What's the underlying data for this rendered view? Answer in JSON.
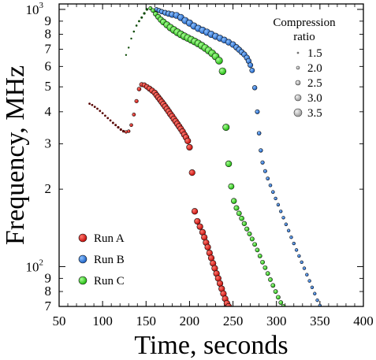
{
  "chart_data": {
    "type": "scatter",
    "xlabel": "Time, seconds",
    "ylabel": "Frequency, MHz",
    "x_scale": "linear",
    "y_scale": "log",
    "xlim": [
      50,
      400
    ],
    "ylim": [
      70,
      1050
    ],
    "x_ticks": [
      50,
      100,
      150,
      200,
      250,
      300,
      350,
      400
    ],
    "y_major_ticks": [
      {
        "value": 100,
        "base": "10",
        "exp": "2"
      },
      {
        "value": 1000,
        "base": "10",
        "exp": "3"
      }
    ],
    "y_minor_labels": [
      {
        "value": 70,
        "label": "7"
      },
      {
        "value": 80,
        "label": "8"
      },
      {
        "value": 90,
        "label": "9"
      },
      {
        "value": 200,
        "label": "2"
      },
      {
        "value": 300,
        "label": "3"
      },
      {
        "value": 400,
        "label": "4"
      },
      {
        "value": 500,
        "label": "5"
      },
      {
        "value": 600,
        "label": "6"
      },
      {
        "value": 700,
        "label": "7"
      },
      {
        "value": 800,
        "label": "8"
      },
      {
        "value": 900,
        "label": "9"
      }
    ],
    "size_legend": {
      "title_lines": [
        "Compression",
        "ratio"
      ],
      "entries": [
        {
          "label": "1.5",
          "ratio": 1.5
        },
        {
          "label": "2.0",
          "ratio": 2.0
        },
        {
          "label": "2.5",
          "ratio": 2.5
        },
        {
          "label": "3.0",
          "ratio": 3.0
        },
        {
          "label": "3.5",
          "ratio": 3.5
        }
      ],
      "placement": "top-right"
    },
    "color_legend_placement": "bottom-left",
    "series": [
      {
        "name": "Run A",
        "color": "#e8130f",
        "points": [
          {
            "x": 85,
            "y": 430,
            "r": 1.4
          },
          {
            "x": 88,
            "y": 425,
            "r": 1.4
          },
          {
            "x": 91,
            "y": 418,
            "r": 1.4
          },
          {
            "x": 94,
            "y": 411,
            "r": 1.4
          },
          {
            "x": 97,
            "y": 403,
            "r": 1.4
          },
          {
            "x": 100,
            "y": 395,
            "r": 1.4
          },
          {
            "x": 103,
            "y": 386,
            "r": 1.4
          },
          {
            "x": 106,
            "y": 378,
            "r": 1.4
          },
          {
            "x": 109,
            "y": 370,
            "r": 1.4
          },
          {
            "x": 112,
            "y": 362,
            "r": 1.5
          },
          {
            "x": 115,
            "y": 355,
            "r": 1.5
          },
          {
            "x": 118,
            "y": 348,
            "r": 1.6
          },
          {
            "x": 121,
            "y": 341,
            "r": 1.6
          },
          {
            "x": 124,
            "y": 336,
            "r": 1.7
          },
          {
            "x": 127,
            "y": 334,
            "r": 1.8
          },
          {
            "x": 130,
            "y": 336,
            "r": 1.9
          },
          {
            "x": 133,
            "y": 355,
            "r": 2.0
          },
          {
            "x": 136,
            "y": 390,
            "r": 2.1
          },
          {
            "x": 139,
            "y": 440,
            "r": 2.3
          },
          {
            "x": 142,
            "y": 490,
            "r": 2.5
          },
          {
            "x": 145,
            "y": 510,
            "r": 2.8
          },
          {
            "x": 148,
            "y": 508,
            "r": 3.0
          },
          {
            "x": 151,
            "y": 500,
            "r": 3.2
          },
          {
            "x": 154,
            "y": 492,
            "r": 3.4
          },
          {
            "x": 157,
            "y": 483,
            "r": 3.5
          },
          {
            "x": 160,
            "y": 474,
            "r": 3.6
          },
          {
            "x": 162,
            "y": 464,
            "r": 3.6
          },
          {
            "x": 164,
            "y": 455,
            "r": 3.7
          },
          {
            "x": 166,
            "y": 446,
            "r": 3.7
          },
          {
            "x": 168,
            "y": 437,
            "r": 3.7
          },
          {
            "x": 170,
            "y": 428,
            "r": 3.8
          },
          {
            "x": 172,
            "y": 419,
            "r": 3.8
          },
          {
            "x": 174,
            "y": 410,
            "r": 3.8
          },
          {
            "x": 176,
            "y": 401,
            "r": 3.8
          },
          {
            "x": 178,
            "y": 392,
            "r": 3.8
          },
          {
            "x": 180,
            "y": 384,
            "r": 3.8
          },
          {
            "x": 182,
            "y": 375,
            "r": 3.8
          },
          {
            "x": 184,
            "y": 367,
            "r": 3.8
          },
          {
            "x": 186,
            "y": 359,
            "r": 3.8
          },
          {
            "x": 188,
            "y": 351,
            "r": 3.8
          },
          {
            "x": 190,
            "y": 343,
            "r": 3.8
          },
          {
            "x": 192,
            "y": 335,
            "r": 3.8
          },
          {
            "x": 194,
            "y": 326,
            "r": 3.8
          },
          {
            "x": 196,
            "y": 318,
            "r": 3.8
          },
          {
            "x": 198,
            "y": 308,
            "r": 3.8
          },
          {
            "x": 200,
            "y": 291,
            "r": 3.8
          },
          {
            "x": 203,
            "y": 232,
            "r": 3.8
          },
          {
            "x": 206,
            "y": 164,
            "r": 3.8
          },
          {
            "x": 209,
            "y": 150,
            "r": 3.8
          },
          {
            "x": 212,
            "y": 143,
            "r": 3.8
          },
          {
            "x": 215,
            "y": 136,
            "r": 3.8
          },
          {
            "x": 217,
            "y": 130,
            "r": 3.8
          },
          {
            "x": 219,
            "y": 124,
            "r": 3.8
          },
          {
            "x": 221,
            "y": 119,
            "r": 3.8
          },
          {
            "x": 223,
            "y": 113,
            "r": 3.8
          },
          {
            "x": 225,
            "y": 108,
            "r": 3.8
          },
          {
            "x": 227,
            "y": 103,
            "r": 3.8
          },
          {
            "x": 229,
            "y": 98.5,
            "r": 3.8
          },
          {
            "x": 231,
            "y": 94,
            "r": 3.8
          },
          {
            "x": 233,
            "y": 90,
            "r": 3.8
          },
          {
            "x": 235,
            "y": 86,
            "r": 3.8
          },
          {
            "x": 237,
            "y": 82,
            "r": 3.8
          },
          {
            "x": 239,
            "y": 78.5,
            "r": 3.8
          },
          {
            "x": 241,
            "y": 75,
            "r": 3.8
          },
          {
            "x": 243,
            "y": 72,
            "r": 3.8
          },
          {
            "x": 245,
            "y": 70,
            "r": 3.8
          }
        ]
      },
      {
        "name": "Run B",
        "color": "#2a7fe8",
        "points": [
          {
            "x": 162,
            "y": 1000,
            "r": 2.6
          },
          {
            "x": 165,
            "y": 990,
            "r": 2.8
          },
          {
            "x": 168,
            "y": 980,
            "r": 3.0
          },
          {
            "x": 172,
            "y": 970,
            "r": 3.3
          },
          {
            "x": 176,
            "y": 962,
            "r": 3.6
          },
          {
            "x": 180,
            "y": 955,
            "r": 3.8
          },
          {
            "x": 185,
            "y": 948,
            "r": 4.0
          },
          {
            "x": 190,
            "y": 930,
            "r": 4.1
          },
          {
            "x": 195,
            "y": 905,
            "r": 4.2
          },
          {
            "x": 200,
            "y": 885,
            "r": 4.2
          },
          {
            "x": 205,
            "y": 862,
            "r": 4.2
          },
          {
            "x": 210,
            "y": 844,
            "r": 4.2
          },
          {
            "x": 215,
            "y": 830,
            "r": 4.2
          },
          {
            "x": 220,
            "y": 815,
            "r": 4.2
          },
          {
            "x": 225,
            "y": 800,
            "r": 4.2
          },
          {
            "x": 230,
            "y": 786,
            "r": 4.1
          },
          {
            "x": 235,
            "y": 773,
            "r": 4.0
          },
          {
            "x": 240,
            "y": 760,
            "r": 3.9
          },
          {
            "x": 245,
            "y": 745,
            "r": 3.8
          },
          {
            "x": 250,
            "y": 730,
            "r": 3.7
          },
          {
            "x": 254,
            "y": 712,
            "r": 3.6
          },
          {
            "x": 257,
            "y": 697,
            "r": 3.5
          },
          {
            "x": 260,
            "y": 682,
            "r": 3.5
          },
          {
            "x": 263,
            "y": 668,
            "r": 3.4
          },
          {
            "x": 266,
            "y": 649,
            "r": 3.4
          },
          {
            "x": 268,
            "y": 630,
            "r": 3.3
          },
          {
            "x": 270,
            "y": 607,
            "r": 3.2
          },
          {
            "x": 272,
            "y": 579,
            "r": 3.1
          },
          {
            "x": 275,
            "y": 496,
            "r": 2.9
          },
          {
            "x": 278,
            "y": 400,
            "r": 2.7
          },
          {
            "x": 280,
            "y": 330,
            "r": 2.5
          },
          {
            "x": 282,
            "y": 283,
            "r": 2.4
          },
          {
            "x": 284,
            "y": 254,
            "r": 2.3
          },
          {
            "x": 287,
            "y": 235,
            "r": 2.2
          },
          {
            "x": 290,
            "y": 220,
            "r": 2.1
          },
          {
            "x": 293,
            "y": 207,
            "r": 2.0
          },
          {
            "x": 296,
            "y": 195,
            "r": 2.0
          },
          {
            "x": 299,
            "y": 184,
            "r": 1.9
          },
          {
            "x": 302,
            "y": 174,
            "r": 1.9
          },
          {
            "x": 305,
            "y": 164,
            "r": 1.9
          },
          {
            "x": 308,
            "y": 155,
            "r": 1.9
          },
          {
            "x": 311,
            "y": 146,
            "r": 1.9
          },
          {
            "x": 314,
            "y": 138,
            "r": 1.9
          },
          {
            "x": 317,
            "y": 130,
            "r": 1.9
          },
          {
            "x": 320,
            "y": 123,
            "r": 1.9
          },
          {
            "x": 323,
            "y": 116,
            "r": 1.9
          },
          {
            "x": 326,
            "y": 110,
            "r": 1.9
          },
          {
            "x": 329,
            "y": 104,
            "r": 1.9
          },
          {
            "x": 332,
            "y": 98.5,
            "r": 1.9
          },
          {
            "x": 335,
            "y": 93,
            "r": 1.9
          },
          {
            "x": 338,
            "y": 88,
            "r": 1.9
          },
          {
            "x": 341,
            "y": 83,
            "r": 1.9
          },
          {
            "x": 344,
            "y": 78.5,
            "r": 1.9
          },
          {
            "x": 347,
            "y": 74,
            "r": 1.9
          },
          {
            "x": 350,
            "y": 70.5,
            "r": 1.9
          }
        ]
      },
      {
        "name": "Run C",
        "color": "#31e61d",
        "points": [
          {
            "x": 127,
            "y": 665,
            "r": 1.2
          },
          {
            "x": 130,
            "y": 710,
            "r": 1.2
          },
          {
            "x": 133,
            "y": 770,
            "r": 1.2
          },
          {
            "x": 136,
            "y": 820,
            "r": 1.3
          },
          {
            "x": 139,
            "y": 865,
            "r": 1.3
          },
          {
            "x": 142,
            "y": 900,
            "r": 1.4
          },
          {
            "x": 145,
            "y": 930,
            "r": 1.5
          },
          {
            "x": 148,
            "y": 965,
            "r": 1.6
          },
          {
            "x": 151,
            "y": 1000,
            "r": 1.7
          },
          {
            "x": 155,
            "y": 1010,
            "r": 2.2
          },
          {
            "x": 158,
            "y": 990,
            "r": 2.6
          },
          {
            "x": 161,
            "y": 960,
            "r": 3.0
          },
          {
            "x": 164,
            "y": 935,
            "r": 3.3
          },
          {
            "x": 167,
            "y": 912,
            "r": 3.6
          },
          {
            "x": 170,
            "y": 893,
            "r": 3.9
          },
          {
            "x": 174,
            "y": 871,
            "r": 4.1
          },
          {
            "x": 178,
            "y": 850,
            "r": 4.3
          },
          {
            "x": 182,
            "y": 832,
            "r": 4.4
          },
          {
            "x": 186,
            "y": 815,
            "r": 4.5
          },
          {
            "x": 190,
            "y": 800,
            "r": 4.5
          },
          {
            "x": 194,
            "y": 786,
            "r": 4.5
          },
          {
            "x": 198,
            "y": 774,
            "r": 4.5
          },
          {
            "x": 202,
            "y": 762,
            "r": 4.5
          },
          {
            "x": 206,
            "y": 750,
            "r": 4.5
          },
          {
            "x": 210,
            "y": 737,
            "r": 4.5
          },
          {
            "x": 214,
            "y": 723,
            "r": 4.5
          },
          {
            "x": 218,
            "y": 708,
            "r": 4.5
          },
          {
            "x": 222,
            "y": 692,
            "r": 4.5
          },
          {
            "x": 226,
            "y": 675,
            "r": 4.5
          },
          {
            "x": 230,
            "y": 656,
            "r": 4.5
          },
          {
            "x": 234,
            "y": 632,
            "r": 4.5
          },
          {
            "x": 238,
            "y": 575,
            "r": 4.4
          },
          {
            "x": 242,
            "y": 348,
            "r": 4.2
          },
          {
            "x": 245,
            "y": 251,
            "r": 3.9
          },
          {
            "x": 248,
            "y": 205,
            "r": 3.6
          },
          {
            "x": 251,
            "y": 180,
            "r": 3.4
          },
          {
            "x": 254,
            "y": 169,
            "r": 3.2
          },
          {
            "x": 257,
            "y": 161,
            "r": 3.1
          },
          {
            "x": 260,
            "y": 154,
            "r": 3.0
          },
          {
            "x": 263,
            "y": 147,
            "r": 2.9
          },
          {
            "x": 266,
            "y": 140,
            "r": 2.8
          },
          {
            "x": 269,
            "y": 134,
            "r": 2.7
          },
          {
            "x": 272,
            "y": 128,
            "r": 2.7
          },
          {
            "x": 275,
            "y": 122,
            "r": 2.6
          },
          {
            "x": 278,
            "y": 116,
            "r": 2.6
          },
          {
            "x": 281,
            "y": 110,
            "r": 2.6
          },
          {
            "x": 284,
            "y": 104,
            "r": 2.6
          },
          {
            "x": 287,
            "y": 99,
            "r": 2.6
          },
          {
            "x": 290,
            "y": 94,
            "r": 2.6
          },
          {
            "x": 293,
            "y": 89,
            "r": 2.6
          },
          {
            "x": 296,
            "y": 84.5,
            "r": 2.6
          },
          {
            "x": 299,
            "y": 80,
            "r": 2.6
          },
          {
            "x": 302,
            "y": 76,
            "r": 2.6
          },
          {
            "x": 305,
            "y": 72.5,
            "r": 2.6
          },
          {
            "x": 308,
            "y": 70,
            "r": 2.6
          }
        ]
      }
    ]
  }
}
